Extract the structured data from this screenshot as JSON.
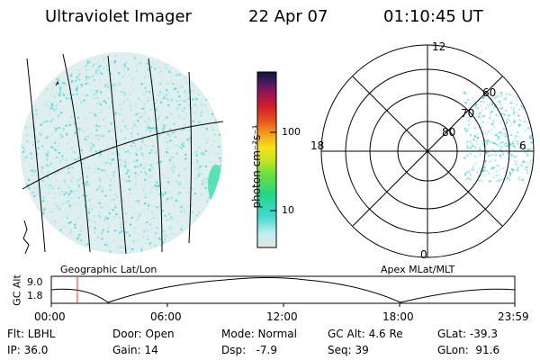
{
  "header": {
    "title": "Ultraviolet Imager",
    "date": "22 Apr 07",
    "time": "01:10:45 UT"
  },
  "colorbar": {
    "unit_label": "photon cm⁻²s⁻¹",
    "ticks": [
      "100",
      "10"
    ]
  },
  "polar_plot": {
    "labels": {
      "top": "12",
      "bottom": "0",
      "left": "18",
      "right": "6",
      "ring_60": "60",
      "ring_70": "70",
      "ring_80": "80"
    }
  },
  "panel_labels": {
    "left": "Geographic Lat/Lon",
    "right": "Apex MLat/MLT"
  },
  "altitude_plot": {
    "axis_label": "GC Alt",
    "y_ticks": [
      "9.0",
      "1.8"
    ],
    "x_ticks": [
      "00:00",
      "06:00",
      "12:00",
      "18:00",
      "23:59"
    ]
  },
  "status": {
    "row1": {
      "flt": "Flt: LBHL",
      "door": "Door: Open",
      "mode": "Mode: Normal",
      "gcalt": "GC Alt: 4.6 Re",
      "glat": "GLat: -39.3"
    },
    "row2": {
      "ip": "IP: 36.0",
      "gain": "Gain: 14",
      "dsp": "Dsp:   -7.9",
      "seq": "Seq: 39",
      "glon": "GLon:  91.6"
    }
  }
}
